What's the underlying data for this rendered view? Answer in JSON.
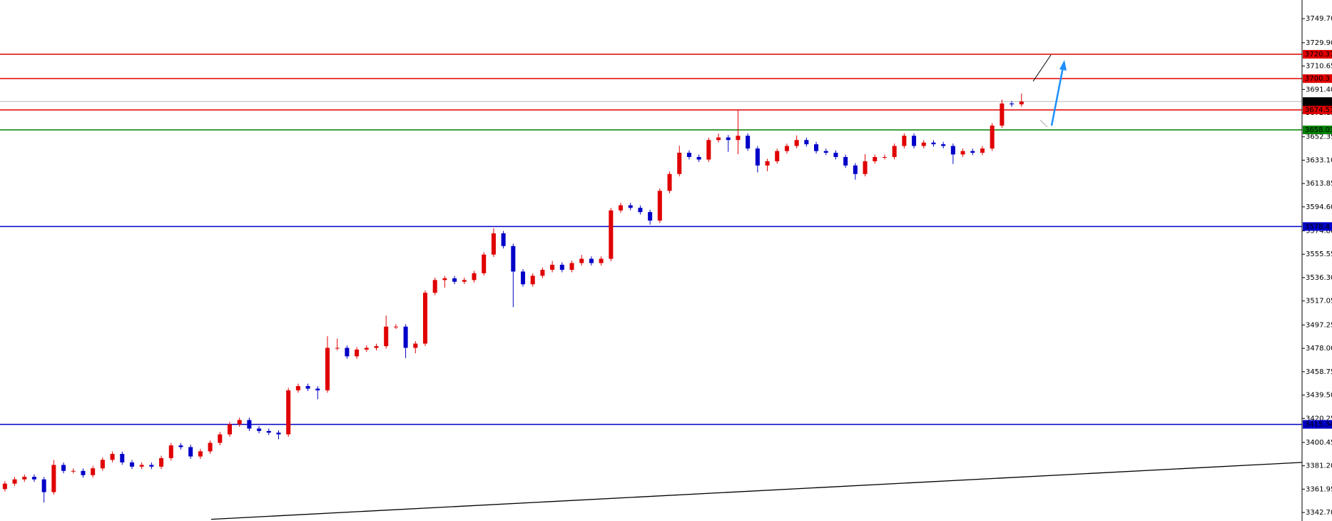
{
  "chart_data": {
    "type": "candlestick",
    "ylim": [
      3335.7,
      3765.1
    ],
    "xlim": [
      -0.5,
      132.7
    ],
    "yticks": [
      {
        "value": 3749.7,
        "label": "3749.70"
      },
      {
        "value": 3729.9,
        "label": "3729.90"
      },
      {
        "value": 3710.65,
        "label": "3710.65"
      },
      {
        "value": 3691.4,
        "label": "3691.40"
      },
      {
        "value": 3672.15,
        "label": "3672.15"
      },
      {
        "value": 3652.35,
        "label": "3652.35"
      },
      {
        "value": 3633.1,
        "label": "3633.10"
      },
      {
        "value": 3613.85,
        "label": "3613.85"
      },
      {
        "value": 3594.6,
        "label": "3594.60"
      },
      {
        "value": 3574.8,
        "label": "3574.80"
      },
      {
        "value": 3555.55,
        "label": "3555.55"
      },
      {
        "value": 3536.3,
        "label": "3536.30"
      },
      {
        "value": 3517.05,
        "label": "3517.05"
      },
      {
        "value": 3497.25,
        "label": "3497.25"
      },
      {
        "value": 3478,
        "label": "3478.00"
      },
      {
        "value": 3458.75,
        "label": "3458.75"
      },
      {
        "value": 3439.5,
        "label": "3439.50"
      },
      {
        "value": 3420.25,
        "label": "3420.25"
      },
      {
        "value": 3400.45,
        "label": "3400.45"
      },
      {
        "value": 3381.2,
        "label": "3381.20"
      },
      {
        "value": 3361.95,
        "label": "3361.95"
      },
      {
        "value": 3342.7,
        "label": "3342.70"
      }
    ],
    "up_color": "#e00000",
    "down_color": "#0000c8",
    "open": [
      3362.0,
      3366.5,
      3370.0,
      3372.1,
      3370.0,
      3359.5,
      3381.9,
      3377.0,
      3377.0,
      3373.5,
      3379.1,
      3386.1,
      3391.0,
      3384.0,
      3380.5,
      3381.9,
      3380.5,
      3387.5,
      3398.0,
      3396.6,
      3388.9,
      3393.1,
      3400.1,
      3407.1,
      3415.4,
      3418.9,
      3411.9,
      3409.9,
      3408.5,
      3407.1,
      3443.4,
      3446.9,
      3444.8,
      3443.4,
      3478.4,
      3478.4,
      3471.4,
      3477.0,
      3478.4,
      3479.8,
      3495.9,
      3495.9,
      3478.4,
      3481.9,
      3523.8,
      3534.3,
      3535.7,
      3532.9,
      3534.3,
      3539.9,
      3555.3,
      3572.8,
      3562.3,
      3541.3,
      3530.8,
      3537.8,
      3542.7,
      3546.9,
      3542.7,
      3548.3,
      3551.8,
      3548.3,
      3551.8,
      3591.7,
      3595.9,
      3593.8,
      3590.3,
      3583.3,
      3607.8,
      3621.7,
      3639.2,
      3635.7,
      3633.6,
      3649.7,
      3651.8,
      3649.7,
      3653.2,
      3642.7,
      3628.7,
      3632.2,
      3640.6,
      3644.8,
      3649.7,
      3646.2,
      3640.6,
      3639.2,
      3635.7,
      3628.7,
      3621.7,
      3632.2,
      3635.7,
      3635.7,
      3644.8,
      3653.2,
      3644.8,
      3647.6,
      3646.2,
      3644.8,
      3637.8,
      3640.6,
      3639.2,
      3642.7,
      3661.6,
      3679.8,
      3679.1
    ],
    "high": [
      3368.5,
      3372.0,
      3374.1,
      3374.1,
      3372.0,
      3386.0,
      3383.9,
      3379.0,
      3379.0,
      3381.1,
      3388.1,
      3393.0,
      3393.0,
      3386.0,
      3383.9,
      3383.9,
      3389.5,
      3400.0,
      3400.0,
      3398.6,
      3395.1,
      3402.1,
      3409.1,
      3417.4,
      3420.9,
      3420.9,
      3413.9,
      3411.9,
      3410.5,
      3445.4,
      3448.9,
      3448.9,
      3446.8,
      3488.0,
      3486.0,
      3480.4,
      3479.0,
      3480.4,
      3481.8,
      3505.0,
      3497.9,
      3497.9,
      3483.9,
      3525.8,
      3536.3,
      3537.7,
      3537.7,
      3536.3,
      3541.9,
      3557.3,
      3577.0,
      3574.8,
      3564.3,
      3543.3,
      3539.8,
      3544.7,
      3550.0,
      3548.9,
      3550.3,
      3555.0,
      3553.8,
      3553.8,
      3593.7,
      3597.9,
      3597.9,
      3595.8,
      3592.3,
      3609.8,
      3623.7,
      3645.0,
      3641.2,
      3637.7,
      3651.7,
      3655.0,
      3653.8,
      3674.2,
      3655.2,
      3644.7,
      3634.2,
      3642.6,
      3646.8,
      3653.5,
      3651.7,
      3648.2,
      3642.6,
      3641.2,
      3637.7,
      3630.7,
      3638.0,
      3637.7,
      3637.7,
      3646.8,
      3655.2,
      3655.2,
      3649.6,
      3649.6,
      3648.2,
      3646.8,
      3642.6,
      3642.6,
      3644.7,
      3663.6,
      3683.0,
      3681.8,
      3688.0
    ],
    "low": [
      3360.0,
      3364.5,
      3368.0,
      3368.0,
      3351.0,
      3357.5,
      3375.0,
      3375.0,
      3371.5,
      3371.5,
      3377.1,
      3384.1,
      3382.0,
      3378.5,
      3378.5,
      3378.5,
      3378.5,
      3385.5,
      3394.6,
      3386.9,
      3386.9,
      3391.1,
      3398.1,
      3405.1,
      3413.4,
      3409.9,
      3407.9,
      3406.5,
      3403.0,
      3405.1,
      3441.4,
      3442.8,
      3436.0,
      3441.4,
      3476.4,
      3469.4,
      3469.4,
      3475.0,
      3476.4,
      3477.8,
      3493.9,
      3470.0,
      3474.0,
      3479.9,
      3521.8,
      3528.0,
      3530.9,
      3530.9,
      3532.3,
      3537.9,
      3553.3,
      3560.3,
      3512.0,
      3528.8,
      3528.8,
      3535.8,
      3540.7,
      3540.7,
      3540.7,
      3546.3,
      3546.3,
      3546.3,
      3549.8,
      3589.7,
      3591.8,
      3588.3,
      3580.0,
      3581.3,
      3605.8,
      3619.7,
      3633.7,
      3631.6,
      3631.6,
      3647.7,
      3640.0,
      3638.0,
      3640.7,
      3623.0,
      3624.0,
      3630.2,
      3638.6,
      3642.8,
      3644.2,
      3638.6,
      3637.2,
      3633.7,
      3626.7,
      3617.0,
      3619.7,
      3630.2,
      3633.7,
      3633.7,
      3642.8,
      3642.8,
      3642.8,
      3644.2,
      3642.8,
      3630.0,
      3635.8,
      3637.2,
      3637.2,
      3640.7,
      3659.6,
      3677.1,
      3677.1
    ],
    "close": [
      3366.5,
      3370.0,
      3372.1,
      3370.0,
      3359.5,
      3381.9,
      3377.0,
      3377.0,
      3373.5,
      3379.1,
      3386.1,
      3391.0,
      3384.0,
      3380.5,
      3381.9,
      3380.5,
      3387.5,
      3398.0,
      3396.6,
      3388.9,
      3393.1,
      3400.1,
      3407.1,
      3415.4,
      3418.9,
      3411.9,
      3409.9,
      3408.5,
      3407.1,
      3443.4,
      3446.9,
      3444.8,
      3443.4,
      3478.4,
      3478.4,
      3471.4,
      3477.0,
      3478.4,
      3479.8,
      3495.9,
      3495.9,
      3478.4,
      3481.9,
      3523.8,
      3534.3,
      3535.7,
      3532.9,
      3534.3,
      3539.9,
      3555.3,
      3572.8,
      3562.3,
      3541.3,
      3530.8,
      3537.8,
      3542.7,
      3546.9,
      3542.7,
      3548.3,
      3551.8,
      3548.3,
      3551.8,
      3591.7,
      3595.9,
      3593.8,
      3590.3,
      3583.3,
      3607.8,
      3621.7,
      3639.2,
      3635.7,
      3633.6,
      3649.7,
      3651.8,
      3649.7,
      3653.2,
      3642.7,
      3628.7,
      3632.2,
      3640.6,
      3644.8,
      3649.7,
      3646.2,
      3640.6,
      3639.2,
      3635.7,
      3628.7,
      3621.7,
      3632.2,
      3635.7,
      3635.7,
      3644.8,
      3653.2,
      3644.8,
      3647.6,
      3646.2,
      3644.8,
      3637.8,
      3640.6,
      3639.2,
      3642.7,
      3661.6,
      3679.8,
      3679.1,
      3681.4
    ],
    "levels": [
      {
        "value": 3720.37,
        "color": "#e00000"
      },
      {
        "value": 3700.3,
        "color": "#e00000"
      },
      {
        "value": 3674.51,
        "color": "#e00000"
      },
      {
        "value": 3658.03,
        "color": "#008000"
      },
      {
        "value": 3578.4,
        "color": "#0000c8"
      },
      {
        "value": 3415.34,
        "color": "#0000c8"
      }
    ],
    "current_price": {
      "value": 3681.41,
      "color": "#000000",
      "line_color": "#b8b8b8"
    },
    "trendline": {
      "x": [
        21.1,
        132.7
      ],
      "y": [
        3337.1,
        3384.0
      ],
      "color": "#000000"
    }
  }
}
